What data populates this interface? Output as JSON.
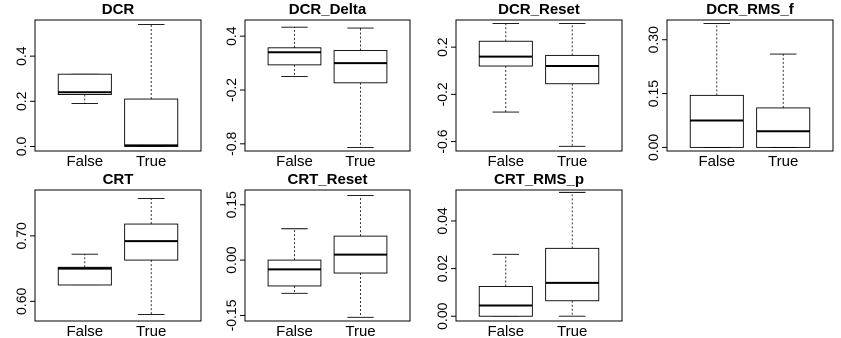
{
  "chart_data": [
    {
      "type": "boxplot",
      "title": "DCR",
      "categories": [
        "False",
        "True"
      ],
      "ylim": [
        -0.02,
        0.56
      ],
      "yticks": [
        0.0,
        0.2,
        0.4
      ],
      "ytick_labels": [
        "0.0",
        "0.2",
        "0.4"
      ],
      "boxes": [
        {
          "category": "False",
          "min": 0.19,
          "q1": 0.23,
          "median": 0.24,
          "q3": 0.32,
          "max": 0.32
        },
        {
          "category": "True",
          "min": 0.0,
          "q1": 0.0,
          "median": 0.005,
          "q3": 0.21,
          "max": 0.54
        }
      ]
    },
    {
      "type": "boxplot",
      "title": "DCR_Delta",
      "categories": [
        "False",
        "True"
      ],
      "ylim": [
        -0.88,
        0.58
      ],
      "yticks": [
        -0.8,
        -0.2,
        0.4
      ],
      "ytick_labels": [
        "-0.8",
        "-0.2",
        "0.4"
      ],
      "boxes": [
        {
          "category": "False",
          "min": -0.05,
          "q1": 0.08,
          "median": 0.22,
          "q3": 0.27,
          "max": 0.5
        },
        {
          "category": "True",
          "min": -0.84,
          "q1": -0.12,
          "median": 0.1,
          "q3": 0.24,
          "max": 0.49
        }
      ]
    },
    {
      "type": "boxplot",
      "title": "DCR_Reset",
      "categories": [
        "False",
        "True"
      ],
      "ylim": [
        -0.68,
        0.43
      ],
      "yticks": [
        -0.6,
        -0.2,
        0.2
      ],
      "ytick_labels": [
        "-0.6",
        "-0.2",
        "0.2"
      ],
      "boxes": [
        {
          "category": "False",
          "min": -0.35,
          "q1": 0.04,
          "median": 0.12,
          "q3": 0.25,
          "max": 0.4
        },
        {
          "category": "True",
          "min": -0.64,
          "q1": -0.11,
          "median": 0.04,
          "q3": 0.13,
          "max": 0.4
        }
      ]
    },
    {
      "type": "boxplot",
      "title": "DCR_RMS_f",
      "categories": [
        "False",
        "True"
      ],
      "ylim": [
        -0.01,
        0.355
      ],
      "yticks": [
        0.0,
        0.15,
        0.3
      ],
      "ytick_labels": [
        "0.00",
        "0.15",
        "0.30"
      ],
      "boxes": [
        {
          "category": "False",
          "min": 0.0,
          "q1": 0.0,
          "median": 0.075,
          "q3": 0.145,
          "max": 0.345
        },
        {
          "category": "True",
          "min": 0.0,
          "q1": 0.0,
          "median": 0.045,
          "q3": 0.11,
          "max": 0.26
        }
      ]
    },
    {
      "type": "boxplot",
      "title": "CRT",
      "categories": [
        "False",
        "True"
      ],
      "ylim": [
        0.57,
        0.77
      ],
      "yticks": [
        0.6,
        0.7
      ],
      "ytick_labels": [
        "0.60",
        "0.70"
      ],
      "boxes": [
        {
          "category": "False",
          "min": 0.625,
          "q1": 0.625,
          "median": 0.65,
          "q3": 0.652,
          "max": 0.672
        },
        {
          "category": "True",
          "min": 0.58,
          "q1": 0.663,
          "median": 0.692,
          "q3": 0.718,
          "max": 0.757
        }
      ]
    },
    {
      "type": "boxplot",
      "title": "CRT_Reset",
      "categories": [
        "False",
        "True"
      ],
      "ylim": [
        -0.165,
        0.19
      ],
      "yticks": [
        -0.15,
        0.0,
        0.15
      ],
      "ytick_labels": [
        "-0.15",
        "0.00",
        "0.15"
      ],
      "boxes": [
        {
          "category": "False",
          "min": -0.09,
          "q1": -0.07,
          "median": -0.025,
          "q3": 0.0,
          "max": 0.085
        },
        {
          "category": "True",
          "min": -0.155,
          "q1": -0.035,
          "median": 0.015,
          "q3": 0.065,
          "max": 0.175
        }
      ]
    },
    {
      "type": "boxplot",
      "title": "CRT_RMS_p",
      "categories": [
        "False",
        "True"
      ],
      "ylim": [
        -0.002,
        0.053
      ],
      "yticks": [
        0.0,
        0.02,
        0.04
      ],
      "ytick_labels": [
        "0.00",
        "0.02",
        "0.04"
      ],
      "boxes": [
        {
          "category": "False",
          "min": 0.0,
          "q1": 0.0,
          "median": 0.0045,
          "q3": 0.0125,
          "max": 0.026
        },
        {
          "category": "True",
          "min": 0.0,
          "q1": 0.0065,
          "median": 0.014,
          "q3": 0.0285,
          "max": 0.052
        }
      ]
    }
  ]
}
